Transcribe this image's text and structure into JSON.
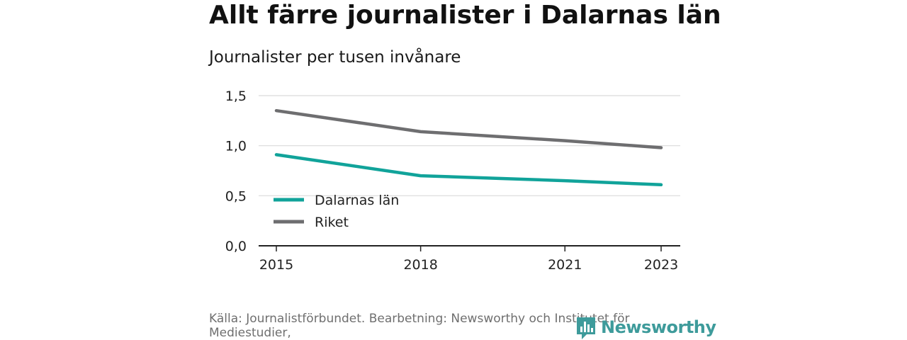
{
  "title": "Allt färre journalister i Dalarnas län",
  "subtitle": "Journalister per tusen invånare",
  "source": "Källa: Journalistförbundet. Bearbetning: Newsworthy och Institutet för Mediestudier,",
  "logo": {
    "text": "Newsworthy",
    "icon": "bar-chart-logo-icon",
    "color": "#3e9b9b"
  },
  "chart_data": {
    "type": "line",
    "title": "Allt färre journalister i Dalarnas län",
    "subtitle": "Journalister per tusen invånare",
    "xlabel": "",
    "ylabel": "",
    "x": [
      2015,
      2018,
      2021,
      2023
    ],
    "x_ticks": [
      "2015",
      "2018",
      "2021",
      "2023"
    ],
    "xlim": [
      2015,
      2023
    ],
    "ylim": [
      0,
      1.5
    ],
    "y_ticks": [
      "0,0",
      "0,5",
      "1,0",
      "1,5"
    ],
    "y_tick_values": [
      0,
      0.5,
      1.0,
      1.5
    ],
    "grid": "horizontal",
    "legend": "inside-lower-left",
    "series": [
      {
        "name": "Dalarnas län",
        "color": "#11a39a",
        "values": [
          0.91,
          0.7,
          0.65,
          0.61
        ]
      },
      {
        "name": "Riket",
        "color": "#6e6e70",
        "values": [
          1.35,
          1.14,
          1.05,
          0.98
        ]
      }
    ]
  }
}
